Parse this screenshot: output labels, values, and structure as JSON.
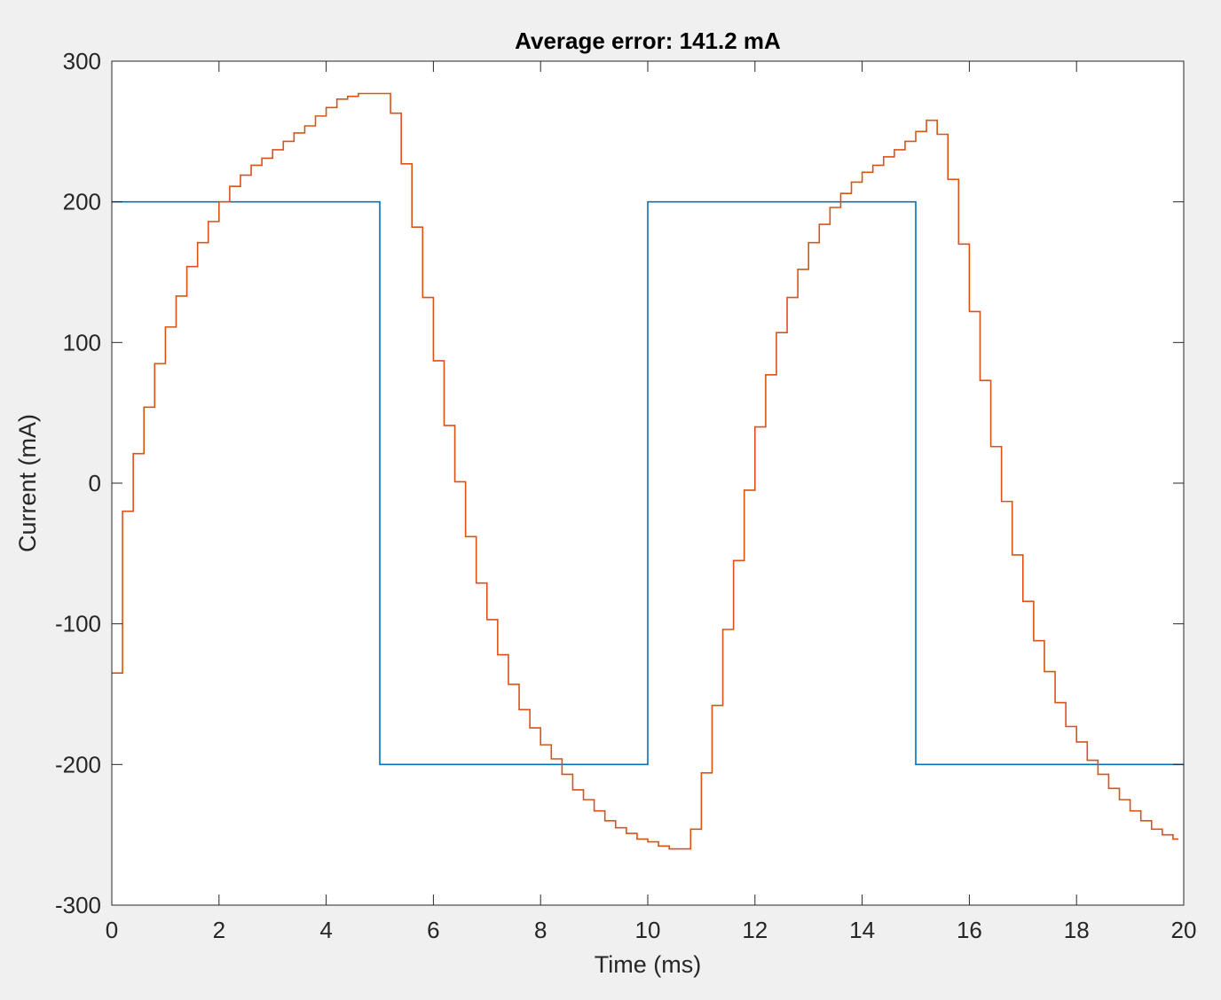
{
  "figure": {
    "background": "#f0f0f0"
  },
  "chart_data": {
    "type": "line",
    "title": "Average error: 141.2 mA",
    "xlabel": "Time (ms)",
    "ylabel": "Current (mA)",
    "xlim": [
      0,
      20
    ],
    "ylim": [
      -300,
      300
    ],
    "xticks": [
      0,
      2,
      4,
      6,
      8,
      10,
      12,
      14,
      16,
      18,
      20
    ],
    "yticks": [
      -300,
      -200,
      -100,
      0,
      100,
      200,
      300
    ],
    "grid": false,
    "legend": "none",
    "series": [
      {
        "color": "#0072bd",
        "style": "step",
        "x": [
          0,
          5,
          10,
          15,
          19.9
        ],
        "y": [
          200,
          -200,
          200,
          -200,
          -200
        ]
      },
      {
        "color": "#d95319",
        "style": "step",
        "x": [
          0,
          0.2,
          0.4,
          0.6,
          0.8,
          1.0,
          1.2,
          1.4,
          1.6,
          1.8,
          2.0,
          2.2,
          2.4,
          2.6,
          2.8,
          3.0,
          3.2,
          3.4,
          3.6,
          3.8,
          4.0,
          4.2,
          4.4,
          4.6,
          4.8,
          5.0,
          5.2,
          5.4,
          5.6,
          5.8,
          6.0,
          6.2,
          6.4,
          6.6,
          6.8,
          7.0,
          7.2,
          7.4,
          7.6,
          7.8,
          8.0,
          8.2,
          8.4,
          8.6,
          8.8,
          9.0,
          9.2,
          9.4,
          9.6,
          9.8,
          10.0,
          10.2,
          10.4,
          10.6,
          10.8,
          11.0,
          11.2,
          11.4,
          11.6,
          11.8,
          12.0,
          12.2,
          12.4,
          12.6,
          12.8,
          13.0,
          13.2,
          13.4,
          13.6,
          13.8,
          14.0,
          14.2,
          14.4,
          14.6,
          14.8,
          15.0,
          15.2,
          15.4,
          15.6,
          15.8,
          16.0,
          16.2,
          16.4,
          16.6,
          16.8,
          17.0,
          17.2,
          17.4,
          17.6,
          17.8,
          18.0,
          18.2,
          18.4,
          18.6,
          18.8,
          19.0,
          19.2,
          19.4,
          19.6,
          19.8
        ],
        "y": [
          -135,
          -20,
          21,
          54,
          85,
          111,
          133,
          154,
          171,
          186,
          200,
          211,
          219,
          226,
          231,
          237,
          243,
          249,
          254,
          261,
          267,
          273,
          275,
          277,
          277,
          277,
          263,
          227,
          182,
          132,
          87,
          41,
          1,
          -38,
          -71,
          -97,
          -122,
          -143,
          -161,
          -174,
          -186,
          -196,
          -207,
          -218,
          -225,
          -233,
          -240,
          -245,
          -249,
          -253,
          -255,
          -258,
          -260,
          -260,
          -246,
          -206,
          -158,
          -104,
          -55,
          -5,
          40,
          77,
          107,
          132,
          152,
          171,
          184,
          196,
          206,
          214,
          221,
          226,
          232,
          237,
          243,
          250,
          258,
          248,
          216,
          170,
          122,
          73,
          26,
          -13,
          -51,
          -84,
          -112,
          -134,
          -156,
          -173,
          -184,
          -197,
          -207,
          -217,
          -225,
          -233,
          -240,
          -246,
          -250,
          -253
        ]
      }
    ]
  }
}
